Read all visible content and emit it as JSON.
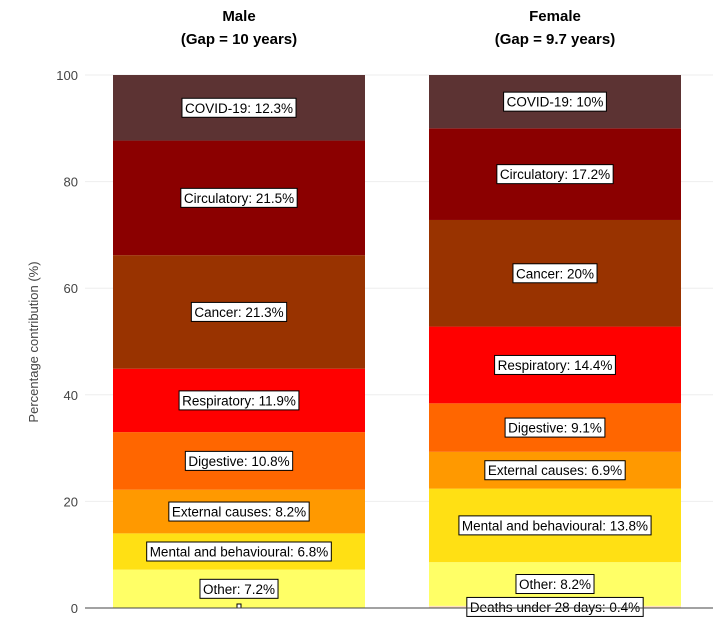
{
  "chart_data": {
    "type": "bar",
    "stacked": true,
    "ylabel": "Percentage contribution (%)",
    "ylim": [
      0,
      100
    ],
    "yticks": [
      0,
      20,
      40,
      60,
      80,
      100
    ],
    "grid": true,
    "panels": [
      {
        "title_line1": "Male",
        "title_line2": "(Gap = 10 years)",
        "segments": [
          {
            "name": "Other",
            "value": 7.2,
            "label": "Other: 7.2%",
            "color": "#FFFF66"
          },
          {
            "name": "Deaths under 28 days",
            "value": 0.0,
            "label": "",
            "color": "#FFE0C0"
          },
          {
            "name": "Mental and behavioural",
            "value": 6.8,
            "label": "Mental and behavioural: 6.8%",
            "color": "#FFE014"
          },
          {
            "name": "External causes",
            "value": 8.2,
            "label": "External causes: 8.2%",
            "color": "#FF9900"
          },
          {
            "name": "Digestive",
            "value": 10.8,
            "label": "Digestive: 10.8%",
            "color": "#FF6600"
          },
          {
            "name": "Respiratory",
            "value": 11.9,
            "label": "Respiratory: 11.9%",
            "color": "#FF0000"
          },
          {
            "name": "Cancer",
            "value": 21.3,
            "label": "Cancer: 21.3%",
            "color": "#993300"
          },
          {
            "name": "Circulatory",
            "value": 21.5,
            "label": "Circulatory: 21.5%",
            "color": "#8B0000"
          },
          {
            "name": "COVID-19",
            "value": 12.3,
            "label": "COVID-19: 12.3%",
            "color": "#5C3333"
          }
        ]
      },
      {
        "title_line1": "Female",
        "title_line2": "(Gap = 9.7 years)",
        "segments": [
          {
            "name": "Deaths under 28 days",
            "value": 0.4,
            "label": "Deaths under 28 days: 0.4%",
            "color": "#FFE0C0"
          },
          {
            "name": "Other",
            "value": 8.2,
            "label": "Other: 8.2%",
            "color": "#FFFF66"
          },
          {
            "name": "Mental and behavioural",
            "value": 13.8,
            "label": "Mental and behavioural: 13.8%",
            "color": "#FFE014"
          },
          {
            "name": "External causes",
            "value": 6.9,
            "label": "External causes: 6.9%",
            "color": "#FF9900"
          },
          {
            "name": "Digestive",
            "value": 9.1,
            "label": "Digestive: 9.1%",
            "color": "#FF6600"
          },
          {
            "name": "Respiratory",
            "value": 14.4,
            "label": "Respiratory: 14.4%",
            "color": "#FF0000"
          },
          {
            "name": "Cancer",
            "value": 20.0,
            "label": "Cancer: 20%",
            "color": "#993300"
          },
          {
            "name": "Circulatory",
            "value": 17.2,
            "label": "Circulatory: 17.2%",
            "color": "#8B0000"
          },
          {
            "name": "COVID-19",
            "value": 10.0,
            "label": "COVID-19: 10%",
            "color": "#5C3333"
          }
        ]
      }
    ]
  }
}
